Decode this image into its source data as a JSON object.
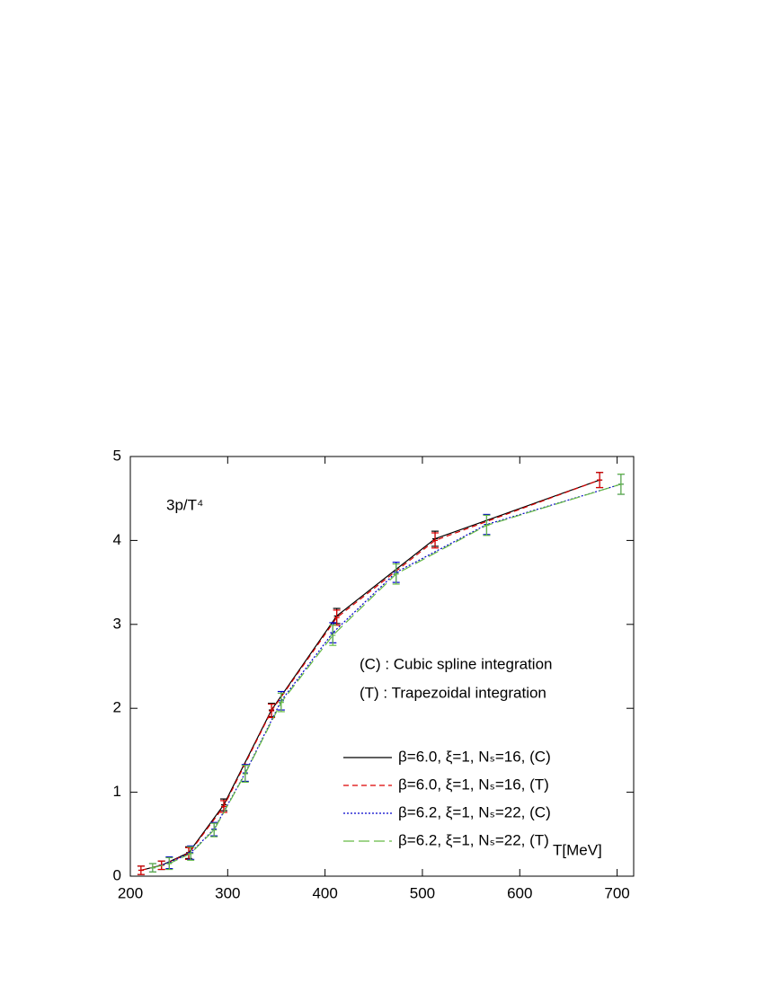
{
  "chart_data": {
    "type": "errorbar_line",
    "ylabel": "3p/T⁴",
    "xlabel": "T[MeV]",
    "annotations": [
      "(C) : Cubic spline integration",
      "(T) : Trapezoidal integration"
    ],
    "xlim": [
      200,
      717
    ],
    "xticks": [
      200,
      300,
      400,
      500,
      600,
      700
    ],
    "ylim": [
      0,
      5
    ],
    "yticks": [
      0,
      1,
      2,
      3,
      4,
      5
    ],
    "series": [
      {
        "name": "β=6.0, ξ=1, Nₛ=16, (C)",
        "color": "#000000",
        "dash": "none",
        "x": [
          211,
          232,
          260,
          296,
          345,
          412,
          513,
          682
        ],
        "values": [
          0.07,
          0.13,
          0.28,
          0.85,
          1.98,
          3.1,
          4.02,
          4.72
        ],
        "errors": [
          0.05,
          0.05,
          0.07,
          0.07,
          0.08,
          0.09,
          0.09,
          0.09
        ]
      },
      {
        "name": "β=6.0, ξ=1, Nₛ=16, (T)",
        "color": "#dd0000",
        "dash": "6,4",
        "x": [
          211,
          232,
          260,
          296,
          345,
          412,
          513,
          682
        ],
        "values": [
          0.07,
          0.13,
          0.27,
          0.83,
          1.97,
          3.08,
          4.0,
          4.72
        ],
        "errors": [
          0.05,
          0.05,
          0.07,
          0.07,
          0.08,
          0.09,
          0.09,
          0.09
        ]
      },
      {
        "name": "β=6.2, ξ=1, Nₛ=22, (C)",
        "color": "#0000cc",
        "dash": "2,2",
        "x": [
          223,
          240,
          262,
          286,
          318,
          355,
          408,
          473,
          566,
          704
        ],
        "values": [
          0.1,
          0.16,
          0.28,
          0.56,
          1.23,
          2.09,
          2.9,
          3.62,
          4.19,
          4.67
        ],
        "errors": [
          0.05,
          0.07,
          0.08,
          0.08,
          0.1,
          0.11,
          0.12,
          0.12,
          0.12,
          0.12
        ]
      },
      {
        "name": "β=6.2, ξ=1, Nₛ=22, (T)",
        "color": "#66bb44",
        "dash": "12,5",
        "x": [
          223,
          240,
          262,
          286,
          318,
          355,
          408,
          473,
          566,
          704
        ],
        "values": [
          0.1,
          0.15,
          0.27,
          0.55,
          1.22,
          2.07,
          2.87,
          3.6,
          4.18,
          4.67
        ],
        "errors": [
          0.05,
          0.07,
          0.08,
          0.08,
          0.1,
          0.11,
          0.12,
          0.12,
          0.12,
          0.12
        ]
      }
    ]
  }
}
